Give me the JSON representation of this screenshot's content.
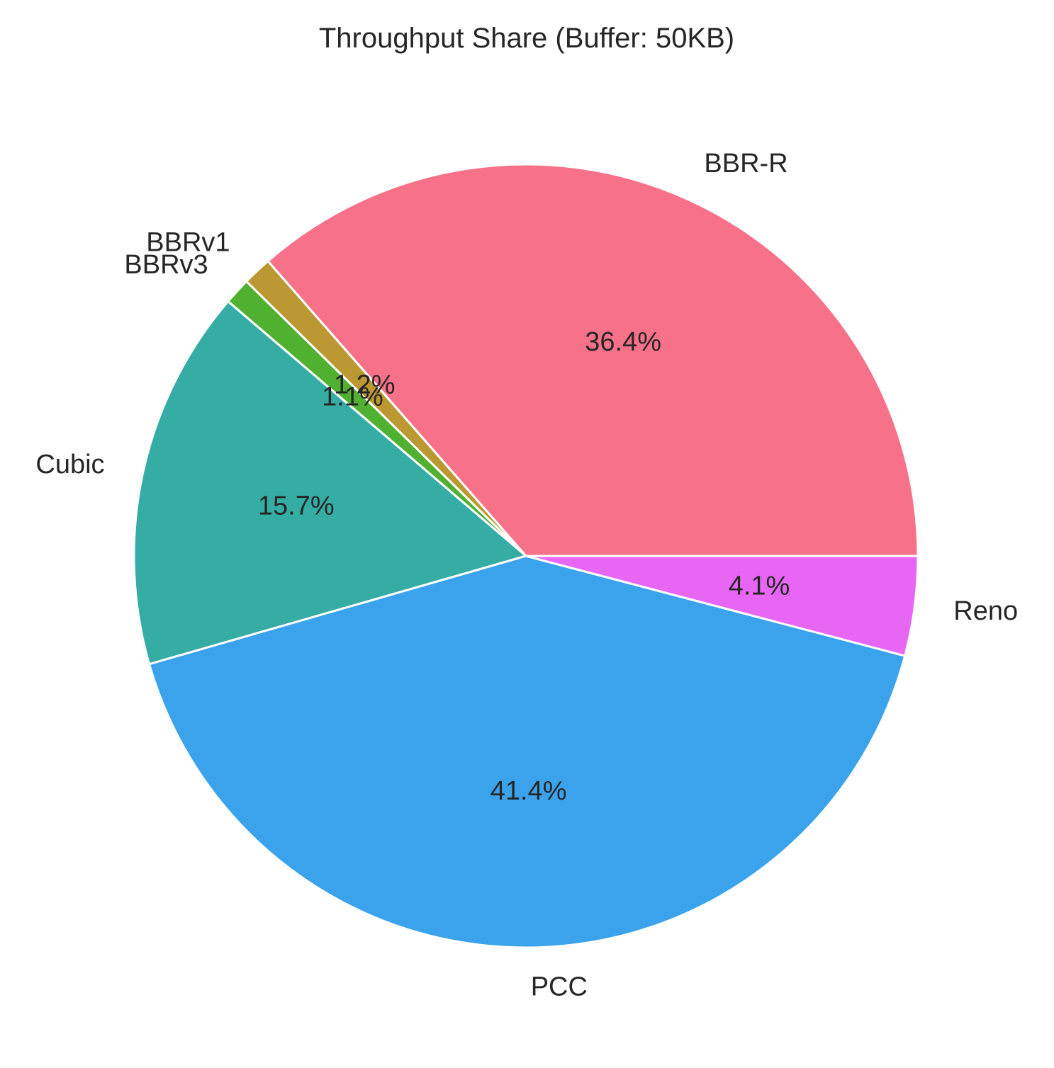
{
  "chart_data": {
    "type": "pie",
    "title": "Throughput Share (Buffer: 50KB)",
    "categories": [
      "BBR-R",
      "BBRv1",
      "BBRv3",
      "Cubic",
      "PCC",
      "Reno"
    ],
    "values": [
      36.4,
      1.2,
      1.1,
      15.7,
      41.4,
      4.1
    ],
    "labels": [
      "36.4%",
      "1.2%",
      "1.1%",
      "15.7%",
      "41.4%",
      "4.1%"
    ],
    "colors": [
      "#f77189",
      "#bb9832",
      "#50b131",
      "#36ada4",
      "#3ba3ec",
      "#e866f4"
    ],
    "start_angle_deg": 0,
    "direction": "counterclockwise",
    "legend": "none"
  }
}
